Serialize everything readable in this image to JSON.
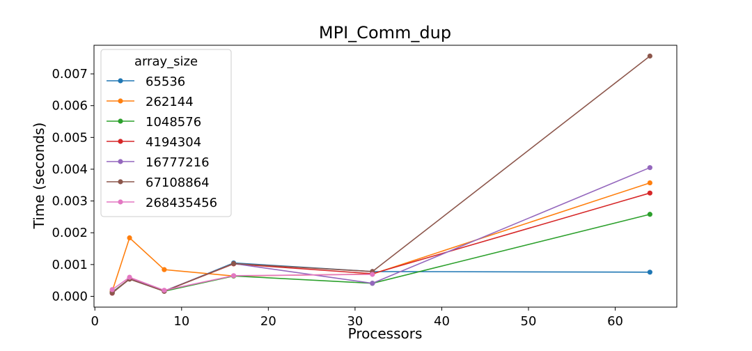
{
  "chart_data": {
    "type": "line",
    "title": "MPI_Comm_dup",
    "xlabel": "Processors",
    "ylabel": "Time (seconds)",
    "xlim": [
      -0.1,
      67.1
    ],
    "ylim": [
      -0.00034,
      0.0079
    ],
    "xticks": [
      0,
      10,
      20,
      30,
      40,
      50,
      60
    ],
    "xtick_labels": [
      "0",
      "10",
      "20",
      "30",
      "40",
      "50",
      "60"
    ],
    "yticks": [
      0.0,
      0.001,
      0.002,
      0.003,
      0.004,
      0.005,
      0.006,
      0.007
    ],
    "ytick_labels": [
      "0.000",
      "0.001",
      "0.002",
      "0.003",
      "0.004",
      "0.005",
      "0.006",
      "0.007"
    ],
    "grid": false,
    "legend_title": "array_size",
    "legend_position": "top-left",
    "x": [
      2,
      4,
      8,
      16,
      32,
      64
    ],
    "series": [
      {
        "name": "65536",
        "color": "#1f77b4",
        "values": [
          0.0001,
          0.00055,
          0.00016,
          0.00105,
          0.00078,
          0.00076
        ]
      },
      {
        "name": "262144",
        "color": "#ff7f0e",
        "values": [
          0.00016,
          0.00184,
          0.00084,
          0.00064,
          0.0007,
          0.00357
        ]
      },
      {
        "name": "1048576",
        "color": "#2ca02c",
        "values": [
          0.00013,
          0.00055,
          0.00016,
          0.00064,
          0.00041,
          0.00258
        ]
      },
      {
        "name": "4194304",
        "color": "#d62728",
        "values": [
          0.0001,
          0.00056,
          0.00016,
          0.00102,
          0.00071,
          0.00325
        ]
      },
      {
        "name": "16777216",
        "color": "#9467bd",
        "values": [
          0.00011,
          0.00055,
          0.00017,
          0.00103,
          0.00041,
          0.00405
        ]
      },
      {
        "name": "67108864",
        "color": "#8c564b",
        "values": [
          0.00011,
          0.00054,
          0.00016,
          0.00103,
          0.00078,
          0.00756
        ]
      },
      {
        "name": "268435456",
        "color": "#e377c2",
        "values": [
          0.00021,
          0.0006,
          0.00019,
          0.00065,
          0.00069,
          null
        ]
      }
    ]
  }
}
